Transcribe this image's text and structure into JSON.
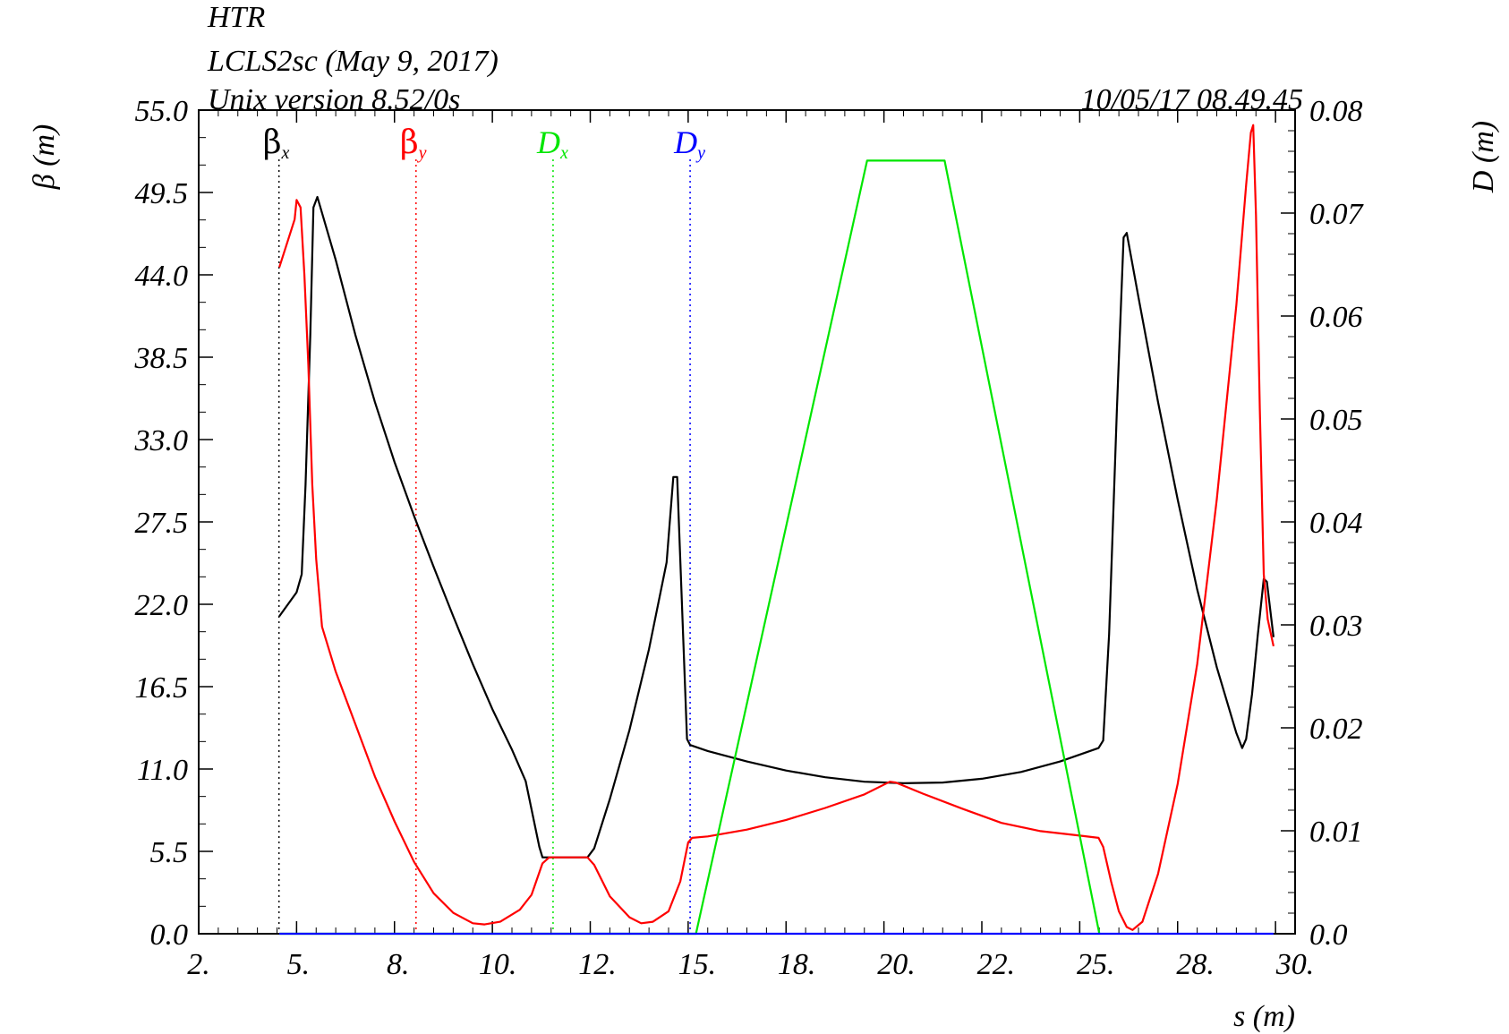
{
  "header": {
    "line1": "HTR",
    "line2": "LCLS2sc (May 9, 2017)",
    "line3": "Unix version 8.52/0s",
    "timestamp": "10/05/17  08.49.45"
  },
  "chart_data": {
    "type": "line",
    "xlabel": "s (m)",
    "ylabel_left": "β  (m)",
    "ylabel_right": "D  (m)",
    "xlim": [
      2.0,
      30.0
    ],
    "ylim_left": [
      0.0,
      55.0
    ],
    "ylim_right": [
      0.0,
      0.08
    ],
    "x_ticks": [
      "2.",
      "5.",
      "8.",
      "10.",
      "12.",
      "15.",
      "18.",
      "20.",
      "22.",
      "25.",
      "28.",
      "30."
    ],
    "y_left_ticks": [
      "0.0",
      "5.5",
      "11.0",
      "16.5",
      "22.0",
      "27.5",
      "33.0",
      "38.5",
      "44.0",
      "49.5",
      "55.0"
    ],
    "y_right_ticks": [
      "0.0",
      "0.01",
      "0.02",
      "0.03",
      "0.04",
      "0.05",
      "0.06",
      "0.07",
      "0.08"
    ],
    "grid": false,
    "legend": [
      {
        "symbol": "β",
        "subscript": "x",
        "color": "#000000",
        "s": 4.05
      },
      {
        "symbol": "β",
        "subscript": "y",
        "color": "#ff0000",
        "s": 7.55
      },
      {
        "symbol": "D",
        "subscript": "x",
        "color": "#00e600",
        "s": 11.05
      },
      {
        "symbol": "D",
        "subscript": "y",
        "color": "#0000ff",
        "s": 14.55
      }
    ],
    "series": [
      {
        "name": "βx",
        "axis": "left",
        "color": "#000000",
        "points": [
          [
            4.06,
            21.2
          ],
          [
            4.5,
            22.8
          ],
          [
            4.63,
            24.0
          ],
          [
            4.73,
            30.0
          ],
          [
            4.85,
            40.0
          ],
          [
            4.93,
            48.5
          ],
          [
            5.03,
            49.2
          ],
          [
            5.5,
            45.0
          ],
          [
            6.0,
            40.0
          ],
          [
            6.5,
            35.5
          ],
          [
            7.0,
            31.5
          ],
          [
            7.5,
            27.9
          ],
          [
            8.0,
            24.5
          ],
          [
            8.5,
            21.2
          ],
          [
            9.0,
            18.0
          ],
          [
            9.5,
            15.0
          ],
          [
            10.0,
            12.3
          ],
          [
            10.35,
            10.2
          ],
          [
            10.7,
            5.8
          ],
          [
            10.78,
            5.1
          ],
          [
            11.93,
            5.1
          ],
          [
            12.1,
            5.7
          ],
          [
            12.5,
            9.0
          ],
          [
            13.0,
            13.6
          ],
          [
            13.5,
            19.0
          ],
          [
            13.95,
            24.8
          ],
          [
            14.12,
            30.5
          ],
          [
            14.22,
            30.5
          ],
          [
            14.47,
            13.0
          ],
          [
            14.55,
            12.6
          ],
          [
            15.0,
            12.2
          ],
          [
            16.0,
            11.5
          ],
          [
            17.0,
            10.9
          ],
          [
            18.0,
            10.45
          ],
          [
            19.0,
            10.15
          ],
          [
            20.0,
            10.05
          ],
          [
            21.0,
            10.1
          ],
          [
            22.0,
            10.35
          ],
          [
            23.0,
            10.8
          ],
          [
            24.0,
            11.5
          ],
          [
            24.98,
            12.4
          ],
          [
            25.1,
            12.9
          ],
          [
            25.25,
            20.0
          ],
          [
            25.45,
            35.0
          ],
          [
            25.62,
            46.5
          ],
          [
            25.7,
            46.8
          ],
          [
            26.0,
            42.5
          ],
          [
            26.5,
            35.5
          ],
          [
            27.0,
            29.0
          ],
          [
            27.5,
            23.0
          ],
          [
            28.0,
            17.8
          ],
          [
            28.5,
            13.4
          ],
          [
            28.65,
            12.4
          ],
          [
            28.75,
            13.0
          ],
          [
            28.9,
            16.0
          ],
          [
            29.05,
            20.0
          ],
          [
            29.2,
            23.7
          ],
          [
            29.28,
            23.5
          ],
          [
            29.45,
            19.8
          ]
        ]
      },
      {
        "name": "βy",
        "axis": "left",
        "color": "#ff0000",
        "points": [
          [
            4.06,
            44.5
          ],
          [
            4.45,
            47.7
          ],
          [
            4.5,
            49.0
          ],
          [
            4.6,
            48.5
          ],
          [
            4.7,
            44.0
          ],
          [
            4.8,
            38.0
          ],
          [
            4.9,
            30.0
          ],
          [
            5.0,
            25.0
          ],
          [
            5.15,
            20.5
          ],
          [
            5.5,
            17.5
          ],
          [
            6.0,
            14.0
          ],
          [
            6.5,
            10.5
          ],
          [
            7.0,
            7.5
          ],
          [
            7.5,
            4.8
          ],
          [
            8.0,
            2.7
          ],
          [
            8.5,
            1.4
          ],
          [
            9.0,
            0.7
          ],
          [
            9.3,
            0.62
          ],
          [
            9.7,
            0.8
          ],
          [
            10.2,
            1.6
          ],
          [
            10.5,
            2.6
          ],
          [
            10.78,
            4.7
          ],
          [
            10.95,
            5.1
          ],
          [
            11.93,
            5.1
          ],
          [
            12.1,
            4.6
          ],
          [
            12.5,
            2.5
          ],
          [
            13.0,
            1.1
          ],
          [
            13.3,
            0.7
          ],
          [
            13.6,
            0.8
          ],
          [
            14.0,
            1.5
          ],
          [
            14.3,
            3.5
          ],
          [
            14.5,
            6.1
          ],
          [
            14.6,
            6.4
          ],
          [
            15.0,
            6.5
          ],
          [
            16.0,
            6.95
          ],
          [
            17.0,
            7.6
          ],
          [
            18.0,
            8.4
          ],
          [
            19.0,
            9.3
          ],
          [
            19.65,
            10.15
          ],
          [
            19.8,
            10.1
          ],
          [
            20.5,
            9.35
          ],
          [
            21.5,
            8.35
          ],
          [
            22.5,
            7.4
          ],
          [
            23.5,
            6.85
          ],
          [
            24.5,
            6.55
          ],
          [
            24.98,
            6.4
          ],
          [
            25.1,
            5.8
          ],
          [
            25.3,
            3.5
          ],
          [
            25.5,
            1.5
          ],
          [
            25.7,
            0.45
          ],
          [
            25.85,
            0.25
          ],
          [
            26.1,
            0.8
          ],
          [
            26.5,
            4.0
          ],
          [
            27.0,
            10.0
          ],
          [
            27.5,
            18.0
          ],
          [
            28.0,
            29.0
          ],
          [
            28.5,
            42.0
          ],
          [
            28.75,
            50.0
          ],
          [
            28.87,
            53.5
          ],
          [
            28.93,
            54.0
          ],
          [
            29.0,
            48.0
          ],
          [
            29.1,
            35.0
          ],
          [
            29.2,
            24.0
          ],
          [
            29.3,
            21.0
          ],
          [
            29.45,
            19.2
          ]
        ]
      },
      {
        "name": "Dx",
        "axis": "right",
        "color": "#00e600",
        "points": [
          [
            4.06,
            0.0
          ],
          [
            14.7,
            0.0
          ],
          [
            19.07,
            0.0751
          ],
          [
            21.05,
            0.0751
          ],
          [
            25.0,
            0.0
          ]
        ]
      },
      {
        "name": "Dy",
        "axis": "right",
        "color": "#0000ff",
        "points": [
          [
            4.06,
            0.0
          ],
          [
            29.45,
            0.0
          ]
        ]
      }
    ]
  }
}
